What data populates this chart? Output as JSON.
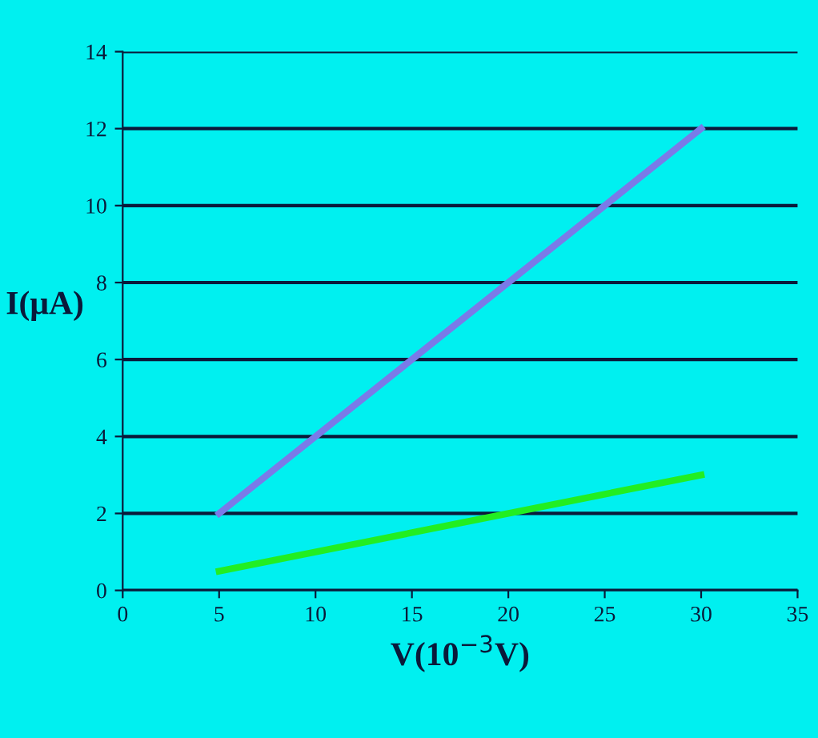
{
  "chart_data": {
    "type": "line",
    "xlabel": "V(10$^{−3}$V)",
    "ylabel": "I(μA)",
    "xlim": [
      0,
      35
    ],
    "xticks": [
      0,
      5,
      10,
      15,
      20,
      25,
      30,
      35
    ],
    "ylim": [
      0,
      14
    ],
    "yticks": [
      0,
      2,
      4,
      6,
      8,
      10,
      12,
      14
    ],
    "grid": "y",
    "marker": "none",
    "line_style": "solid",
    "x": [
      5,
      30
    ],
    "series": [
      {
        "color": "#7a7ae8",
        "values": [
          2,
          12
        ]
      },
      {
        "color": "#22ee22",
        "values": [
          0.5,
          3
        ]
      }
    ]
  }
}
